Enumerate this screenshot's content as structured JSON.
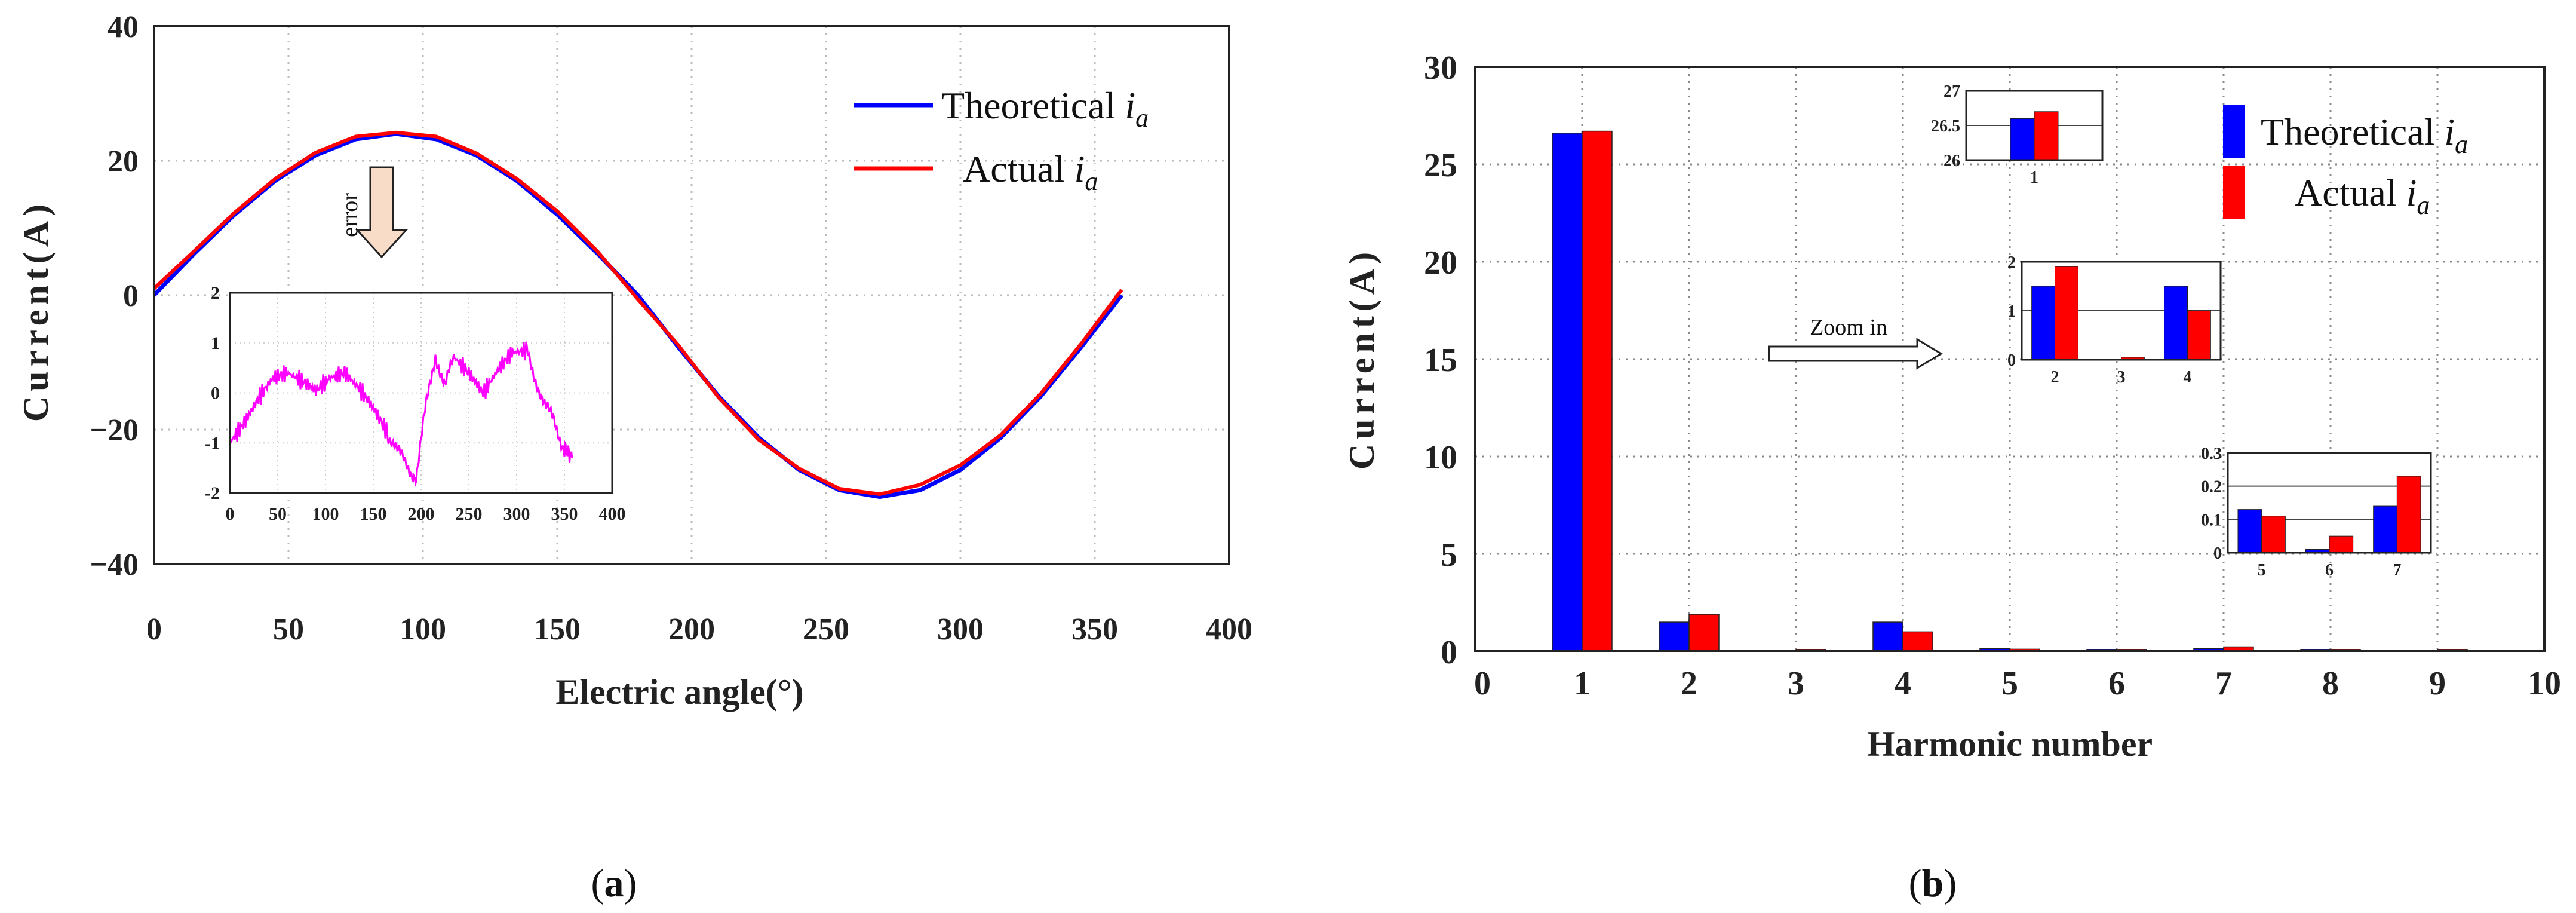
{
  "chart_data": [
    {
      "panel": "(a)",
      "type": "line",
      "title": "",
      "xlabel": "Electric angle(°)",
      "ylabel": "Current(A)",
      "xlim": [
        0,
        400
      ],
      "ylim": [
        -40,
        40
      ],
      "xticks": [
        "0",
        "50",
        "100",
        "150",
        "200",
        "250",
        "300",
        "350",
        "400"
      ],
      "yticks": [
        "40",
        "20",
        "0",
        "−20",
        "−40"
      ],
      "grid": true,
      "legend_position": "top-right",
      "series": [
        {
          "name": "Theoretical",
          "subscript": "a",
          "color": "#0000ff",
          "x": [
            0,
            15,
            30,
            45,
            60,
            75,
            90,
            105,
            120,
            135,
            150,
            165,
            180,
            195,
            210,
            225,
            240,
            255,
            270,
            285,
            300,
            315,
            330,
            345,
            360
          ],
          "y": [
            0,
            6.2,
            12.0,
            17.0,
            20.8,
            23.2,
            24.0,
            23.2,
            20.8,
            17.0,
            12.0,
            6.2,
            0,
            -7.7,
            -15.0,
            -21.2,
            -26.0,
            -29.0,
            -30.0,
            -29.0,
            -26.0,
            -21.2,
            -15.0,
            -7.7,
            0
          ]
        },
        {
          "name": "Actual",
          "subscript": "a",
          "color": "#ff0000",
          "x": [
            0,
            15,
            30,
            45,
            60,
            75,
            90,
            105,
            120,
            135,
            150,
            165,
            180,
            195,
            210,
            225,
            240,
            255,
            270,
            285,
            300,
            315,
            330,
            345,
            360
          ],
          "y": [
            1.0,
            6.6,
            12.3,
            17.3,
            21.2,
            23.6,
            24.2,
            23.6,
            21.1,
            17.3,
            12.5,
            6.5,
            -0.6,
            -7.4,
            -15.2,
            -21.5,
            -25.8,
            -28.8,
            -29.6,
            -28.2,
            -25.3,
            -20.8,
            -14.6,
            -7.2,
            0.8
          ]
        }
      ],
      "annotation": "error",
      "inset": {
        "type": "line",
        "xlim": [
          0,
          400
        ],
        "ylim": [
          -2,
          2
        ],
        "xticks": [
          "0",
          "50",
          "100",
          "150",
          "200",
          "250",
          "300",
          "350",
          "400"
        ],
        "yticks": [
          "2",
          "1",
          "0",
          "-1",
          "-2"
        ],
        "series": [
          {
            "name": "error",
            "color": "#ff00ff",
            "x": [
              0,
              15,
              30,
              45,
              60,
              75,
              90,
              105,
              120,
              135,
              150,
              165,
              175,
              185,
              195,
              205,
              215,
              225,
              235,
              250,
              265,
              280,
              295,
              310,
              320,
              330,
              340,
              350,
              358
            ],
            "y": [
              -1.0,
              -0.6,
              -0.1,
              0.3,
              0.4,
              0.25,
              0.05,
              0.3,
              0.4,
              0.1,
              -0.3,
              -0.8,
              -1.2,
              -1.4,
              -1.7,
              -0.3,
              0.8,
              0.1,
              0.7,
              0.4,
              0.0,
              0.45,
              0.8,
              0.85,
              0.3,
              -0.3,
              -0.6,
              -1.1,
              -1.3
            ]
          }
        ]
      }
    },
    {
      "panel": "(b)",
      "type": "bar",
      "title": "",
      "xlabel": "Harmonic number",
      "ylabel": "Current(A)",
      "xlim": [
        0,
        10
      ],
      "ylim": [
        0,
        30
      ],
      "xticks": [
        "0",
        "1",
        "2",
        "3",
        "4",
        "5",
        "6",
        "7",
        "8",
        "9",
        "10"
      ],
      "yticks": [
        "30",
        "25",
        "20",
        "15",
        "10",
        "5",
        "0"
      ],
      "grid": true,
      "legend_position": "top-right",
      "categories": [
        1,
        2,
        3,
        4,
        5,
        6,
        7,
        8,
        9
      ],
      "series": [
        {
          "name": "Theoretical",
          "subscript": "a",
          "color": "#0000ff",
          "values": [
            26.6,
            1.5,
            0.0,
            1.5,
            0.13,
            0.01,
            0.14,
            0.05,
            0.0
          ]
        },
        {
          "name": "Actual",
          "subscript": "a",
          "color": "#ff0000",
          "values": [
            26.7,
            1.9,
            0.05,
            1.0,
            0.11,
            0.05,
            0.23,
            0.05,
            0.02
          ]
        }
      ],
      "annotation": "Zoom in",
      "insets": [
        {
          "categories": [
            "1"
          ],
          "ylim": [
            26,
            27
          ],
          "yticks": [
            "27",
            "26.5",
            "26"
          ],
          "theoretical": [
            26.6
          ],
          "actual": [
            26.7
          ]
        },
        {
          "categories": [
            "2",
            "3",
            "4"
          ],
          "ylim": [
            0,
            2
          ],
          "yticks": [
            "2",
            "1",
            "0"
          ],
          "theoretical": [
            1.5,
            0.0,
            1.5
          ],
          "actual": [
            1.9,
            0.05,
            1.0
          ]
        },
        {
          "categories": [
            "5",
            "6",
            "7"
          ],
          "ylim": [
            0,
            0.3
          ],
          "yticks": [
            "0.3",
            "0.2",
            "0.1",
            "0"
          ],
          "theoretical": [
            0.13,
            0.01,
            0.14
          ],
          "actual": [
            0.11,
            0.05,
            0.23
          ]
        }
      ]
    }
  ],
  "panel_labels": {
    "a": "a",
    "b": "b"
  }
}
